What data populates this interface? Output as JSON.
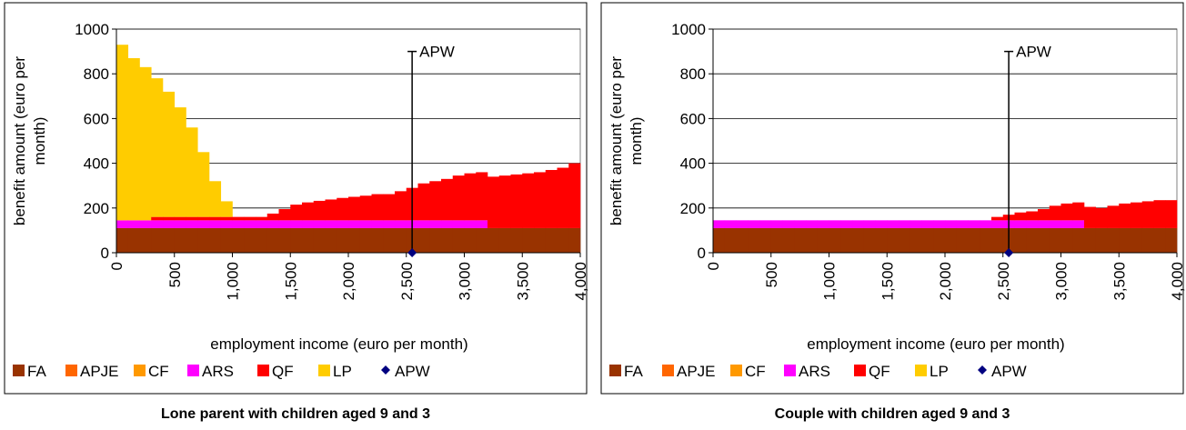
{
  "chart_data": [
    {
      "type": "stacked_bar",
      "title": "Lone parent with children aged 9 and 3",
      "xlabel": "employment income (euro per month)",
      "ylabel": [
        "benefit amount (euro per",
        "month)"
      ],
      "xlim": [
        0,
        4000
      ],
      "ylim": [
        0,
        1000
      ],
      "xticks": [
        0,
        500,
        {
          "value": 1000,
          "label": "1,000"
        },
        {
          "value": 1500,
          "label": "1,500"
        },
        {
          "value": 2000,
          "label": "2,000"
        },
        {
          "value": 2500,
          "label": "2,500"
        },
        {
          "value": 3000,
          "label": "3,000"
        },
        {
          "value": 3500,
          "label": "3,500"
        },
        {
          "value": 4000,
          "label": "4,000"
        }
      ],
      "yticks": [
        0,
        200,
        400,
        600,
        800,
        1000
      ],
      "grid": true,
      "x": [
        0,
        100,
        200,
        300,
        400,
        500,
        600,
        700,
        800,
        900,
        1000,
        1100,
        1200,
        1300,
        1400,
        1500,
        1600,
        1700,
        1800,
        1900,
        2000,
        2100,
        2200,
        2300,
        2400,
        2500,
        2600,
        2700,
        2800,
        2900,
        3000,
        3100,
        3200,
        3300,
        3400,
        3500,
        3600,
        3700,
        3800,
        3900
      ],
      "series": [
        {
          "name": "FA",
          "color": "#993300",
          "values": [
            110,
            110,
            110,
            110,
            110,
            110,
            110,
            110,
            110,
            110,
            110,
            110,
            110,
            110,
            110,
            110,
            110,
            110,
            110,
            110,
            110,
            110,
            110,
            110,
            110,
            110,
            110,
            110,
            110,
            110,
            110,
            110,
            110,
            110,
            110,
            110,
            110,
            110,
            110,
            110
          ]
        },
        {
          "name": "APJE",
          "color": "#FF6600",
          "values": [
            0,
            0,
            0,
            0,
            0,
            0,
            0,
            0,
            0,
            0,
            0,
            0,
            0,
            0,
            0,
            0,
            0,
            0,
            0,
            0,
            0,
            0,
            0,
            0,
            0,
            0,
            0,
            0,
            0,
            0,
            0,
            0,
            0,
            0,
            0,
            0,
            0,
            0,
            0,
            0
          ]
        },
        {
          "name": "CF",
          "color": "#FF9900",
          "values": [
            0,
            0,
            0,
            0,
            0,
            0,
            0,
            0,
            0,
            0,
            0,
            0,
            0,
            0,
            0,
            0,
            0,
            0,
            0,
            0,
            0,
            0,
            0,
            0,
            0,
            0,
            0,
            0,
            0,
            0,
            0,
            0,
            0,
            0,
            0,
            0,
            0,
            0,
            0,
            0
          ]
        },
        {
          "name": "ARS",
          "color": "#FF00FF",
          "values": [
            35,
            35,
            35,
            35,
            35,
            35,
            35,
            35,
            35,
            35,
            35,
            35,
            35,
            35,
            35,
            35,
            35,
            35,
            35,
            35,
            35,
            35,
            35,
            35,
            35,
            35,
            35,
            35,
            35,
            35,
            35,
            35,
            0,
            0,
            0,
            0,
            0,
            0,
            0,
            0
          ]
        },
        {
          "name": "QF",
          "color": "#FF0000",
          "values": [
            0,
            0,
            0,
            15,
            15,
            15,
            15,
            15,
            15,
            15,
            15,
            15,
            15,
            30,
            50,
            70,
            80,
            87,
            93,
            100,
            105,
            110,
            117,
            117,
            130,
            145,
            165,
            175,
            185,
            200,
            210,
            215,
            230,
            235,
            240,
            245,
            250,
            260,
            270,
            290
          ]
        },
        {
          "name": "LP",
          "color": "#FFCC00",
          "values": [
            785,
            725,
            685,
            620,
            560,
            490,
            400,
            290,
            160,
            70,
            0,
            0,
            0,
            0,
            0,
            0,
            0,
            0,
            0,
            0,
            0,
            0,
            0,
            0,
            0,
            0,
            0,
            0,
            0,
            0,
            0,
            0,
            0,
            0,
            0,
            0,
            0,
            0,
            0,
            0
          ]
        }
      ],
      "markers": [
        {
          "name": "APW",
          "color": "#000080",
          "x": 2550,
          "y": 0,
          "line_top": 900
        }
      ]
    },
    {
      "type": "stacked_bar",
      "title": "Couple with children aged 9 and 3",
      "xlabel": "employment income (euro per month)",
      "ylabel": [
        "benefit amount (euro per",
        "month)"
      ],
      "xlim": [
        0,
        4000
      ],
      "ylim": [
        0,
        1000
      ],
      "xticks": [
        0,
        500,
        {
          "value": 1000,
          "label": "1,000"
        },
        {
          "value": 1500,
          "label": "1,500"
        },
        {
          "value": 2000,
          "label": "2,000"
        },
        {
          "value": 2500,
          "label": "2,500"
        },
        {
          "value": 3000,
          "label": "3,000"
        },
        {
          "value": 3500,
          "label": "3,500"
        },
        {
          "value": 4000,
          "label": "4,000"
        }
      ],
      "yticks": [
        0,
        200,
        400,
        600,
        800,
        1000
      ],
      "grid": true,
      "x": [
        0,
        100,
        200,
        300,
        400,
        500,
        600,
        700,
        800,
        900,
        1000,
        1100,
        1200,
        1300,
        1400,
        1500,
        1600,
        1700,
        1800,
        1900,
        2000,
        2100,
        2200,
        2300,
        2400,
        2500,
        2600,
        2700,
        2800,
        2900,
        3000,
        3100,
        3200,
        3300,
        3400,
        3500,
        3600,
        3700,
        3800,
        3900
      ],
      "series": [
        {
          "name": "FA",
          "color": "#993300",
          "values": [
            110,
            110,
            110,
            110,
            110,
            110,
            110,
            110,
            110,
            110,
            110,
            110,
            110,
            110,
            110,
            110,
            110,
            110,
            110,
            110,
            110,
            110,
            110,
            110,
            110,
            110,
            110,
            110,
            110,
            110,
            110,
            110,
            110,
            110,
            110,
            110,
            110,
            110,
            110,
            110
          ]
        },
        {
          "name": "APJE",
          "color": "#FF6600",
          "values": [
            0,
            0,
            0,
            0,
            0,
            0,
            0,
            0,
            0,
            0,
            0,
            0,
            0,
            0,
            0,
            0,
            0,
            0,
            0,
            0,
            0,
            0,
            0,
            0,
            0,
            0,
            0,
            0,
            0,
            0,
            0,
            0,
            0,
            0,
            0,
            0,
            0,
            0,
            0,
            0
          ]
        },
        {
          "name": "CF",
          "color": "#FF9900",
          "values": [
            0,
            0,
            0,
            0,
            0,
            0,
            0,
            0,
            0,
            0,
            0,
            0,
            0,
            0,
            0,
            0,
            0,
            0,
            0,
            0,
            0,
            0,
            0,
            0,
            0,
            0,
            0,
            0,
            0,
            0,
            0,
            0,
            0,
            0,
            0,
            0,
            0,
            0,
            0,
            0
          ]
        },
        {
          "name": "ARS",
          "color": "#FF00FF",
          "values": [
            35,
            35,
            35,
            35,
            35,
            35,
            35,
            35,
            35,
            35,
            35,
            35,
            35,
            35,
            35,
            35,
            35,
            35,
            35,
            35,
            35,
            35,
            35,
            35,
            35,
            35,
            35,
            35,
            35,
            35,
            35,
            35,
            0,
            0,
            0,
            0,
            0,
            0,
            0,
            0
          ]
        },
        {
          "name": "QF",
          "color": "#FF0000",
          "values": [
            0,
            0,
            0,
            0,
            0,
            0,
            0,
            0,
            0,
            0,
            0,
            0,
            0,
            0,
            0,
            0,
            0,
            0,
            0,
            0,
            0,
            0,
            0,
            0,
            15,
            25,
            35,
            40,
            50,
            65,
            75,
            80,
            95,
            90,
            100,
            110,
            115,
            120,
            125,
            125
          ]
        },
        {
          "name": "LP",
          "color": "#FFCC00",
          "values": [
            0,
            0,
            0,
            0,
            0,
            0,
            0,
            0,
            0,
            0,
            0,
            0,
            0,
            0,
            0,
            0,
            0,
            0,
            0,
            0,
            0,
            0,
            0,
            0,
            0,
            0,
            0,
            0,
            0,
            0,
            0,
            0,
            0,
            0,
            0,
            0,
            0,
            0,
            0,
            0
          ]
        }
      ],
      "markers": [
        {
          "name": "APW",
          "color": "#000080",
          "x": 2550,
          "y": 0,
          "line_top": 900
        }
      ]
    }
  ]
}
